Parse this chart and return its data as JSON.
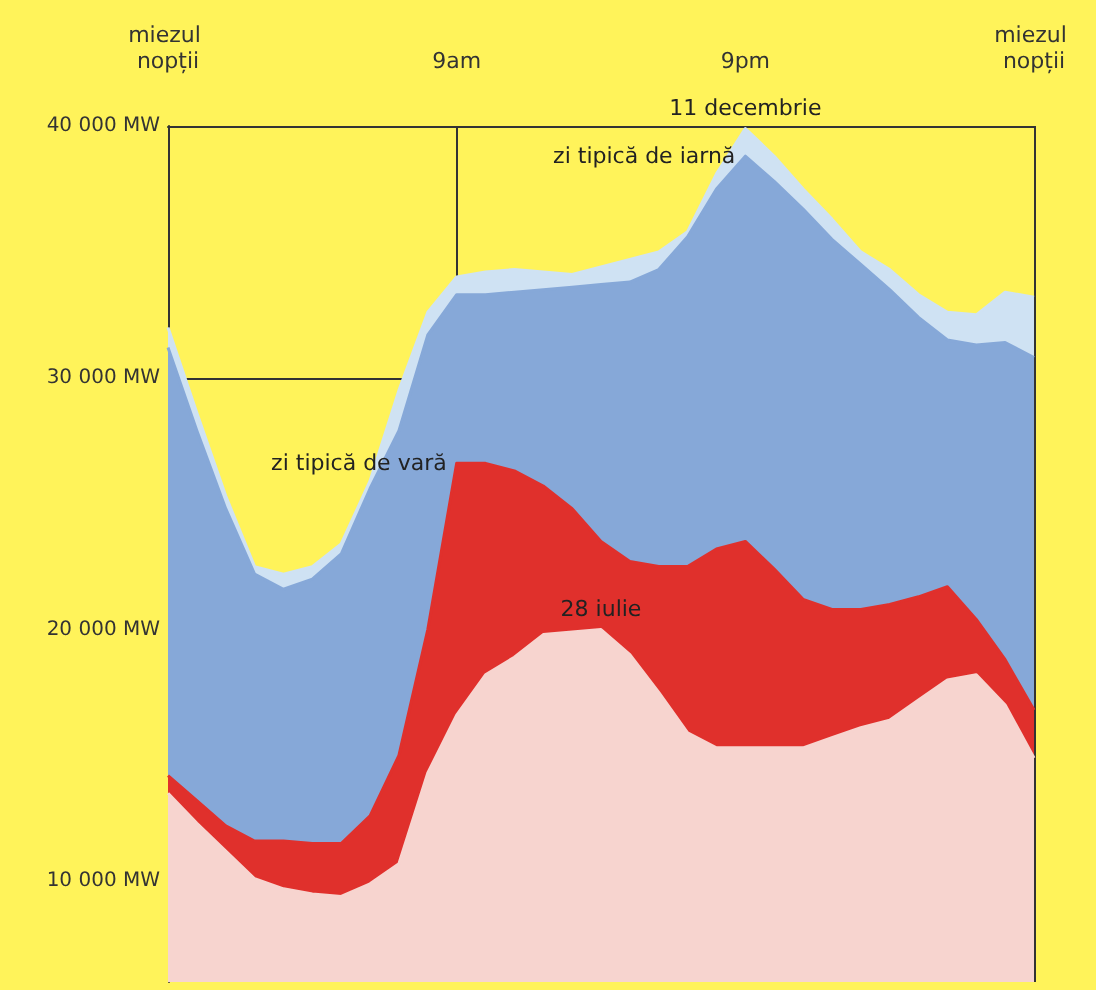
{
  "chart_data": {
    "type": "area",
    "categories": [
      "miezul nopții",
      null,
      null,
      null,
      null,
      null,
      null,
      null,
      null,
      null,
      "9am",
      null,
      null,
      null,
      null,
      null,
      null,
      null,
      null,
      null,
      "9pm",
      null,
      null,
      null,
      null,
      null,
      null,
      null,
      null,
      null,
      "miezul nopții"
    ],
    "ylim": [
      6000,
      40000
    ],
    "yticks": [
      {
        "value": 10000,
        "label": "10 000 MW"
      },
      {
        "value": 20000,
        "label": "20 000 MW"
      },
      {
        "value": 30000,
        "label": "30 000 MW"
      },
      {
        "value": 40000,
        "label": "40 000 MW"
      }
    ],
    "grid": true,
    "legend": false,
    "series": [
      {
        "name": "11 decembrie",
        "color": "#cfe2f3",
        "values": [
          32000,
          28600,
          25300,
          22500,
          22200,
          22500,
          23400,
          25900,
          29500,
          32600,
          34000,
          34200,
          34300,
          34200,
          34100,
          34400,
          34700,
          35000,
          35800,
          38100,
          39900,
          38800,
          37500,
          36300,
          35000,
          34300,
          33300,
          32600,
          32500,
          33400,
          33200
        ]
      },
      {
        "name": "zi tipică de iarnă",
        "color": "#86a8d8",
        "values": [
          31200,
          27900,
          24800,
          22200,
          21600,
          22000,
          23000,
          25600,
          27900,
          31700,
          33300,
          33300,
          33400,
          33500,
          33600,
          33700,
          33800,
          34300,
          35600,
          37500,
          38800,
          37800,
          36700,
          35500,
          34500,
          33500,
          32400,
          31500,
          31300,
          31400,
          30800
        ]
      },
      {
        "name": "zi tipică de vară",
        "color": "#e0302c",
        "values": [
          14200,
          13200,
          12200,
          11600,
          11600,
          11500,
          11500,
          12600,
          15000,
          20000,
          26600,
          26600,
          26300,
          25700,
          24800,
          23500,
          22700,
          22500,
          22500,
          23200,
          23500,
          22400,
          21200,
          20800,
          20800,
          21000,
          21300,
          21700,
          20400,
          18800,
          16800
        ]
      },
      {
        "name": "28 iulie",
        "color": "#f7d4cf",
        "values": [
          13500,
          12300,
          11200,
          10100,
          9700,
          9500,
          9400,
          9900,
          10700,
          14300,
          16600,
          18200,
          18900,
          19800,
          19900,
          20000,
          19000,
          17500,
          15900,
          15300,
          15300,
          15300,
          15300,
          15700,
          16100,
          16400,
          17200,
          18000,
          18200,
          17000,
          14900
        ]
      }
    ]
  }
}
